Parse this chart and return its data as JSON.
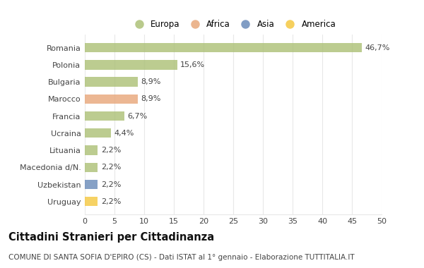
{
  "categories": [
    "Romania",
    "Polonia",
    "Bulgaria",
    "Marocco",
    "Francia",
    "Ucraina",
    "Lituania",
    "Macedonia d/N.",
    "Uzbekistan",
    "Uruguay"
  ],
  "values": [
    46.7,
    15.6,
    8.9,
    8.9,
    6.7,
    4.4,
    2.2,
    2.2,
    2.2,
    2.2
  ],
  "labels": [
    "46,7%",
    "15,6%",
    "8,9%",
    "8,9%",
    "6,7%",
    "4,4%",
    "2,2%",
    "2,2%",
    "2,2%",
    "2,2%"
  ],
  "colors": [
    "#adc178",
    "#adc178",
    "#adc178",
    "#e8a87c",
    "#adc178",
    "#adc178",
    "#adc178",
    "#adc178",
    "#6b8cba",
    "#f5c842"
  ],
  "continent_colors": {
    "Europa": "#adc178",
    "Africa": "#e8a87c",
    "Asia": "#6b8cba",
    "America": "#f5c842"
  },
  "legend_labels": [
    "Europa",
    "Africa",
    "Asia",
    "America"
  ],
  "title": "Cittadini Stranieri per Cittadinanza",
  "subtitle": "COMUNE DI SANTA SOFIA D'EPIRO (CS) - Dati ISTAT al 1° gennaio - Elaborazione TUTTITALIA.IT",
  "xlim": [
    0,
    50
  ],
  "xticks": [
    0,
    5,
    10,
    15,
    20,
    25,
    30,
    35,
    40,
    45,
    50
  ],
  "background_color": "#ffffff",
  "plot_bg_color": "#f9f9f9",
  "grid_color": "#e8e8e8",
  "bar_height": 0.55,
  "title_fontsize": 10.5,
  "subtitle_fontsize": 7.5,
  "tick_fontsize": 8,
  "label_fontsize": 8,
  "legend_fontsize": 8.5
}
